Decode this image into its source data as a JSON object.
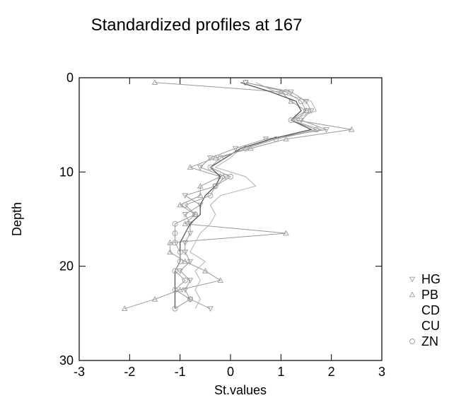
{
  "chart_data": {
    "type": "line",
    "title": "Standardized profiles at 167",
    "xlabel": "St.values",
    "ylabel": "Depth",
    "xlim": [
      -3,
      3
    ],
    "ylim": [
      0,
      30
    ],
    "y_inverted": true,
    "xticks": [
      "-3",
      "-2",
      "-1",
      "0",
      "1",
      "2",
      "3"
    ],
    "yticks": [
      "0",
      "10",
      "20",
      "30"
    ],
    "grid": false,
    "legend_position": "right",
    "series": [
      {
        "name": "HG",
        "color": "#9a9a9a",
        "marker": "triangle-down",
        "points": [
          {
            "x": 0.3,
            "y": 0.5
          },
          {
            "x": 1.2,
            "y": 1.5
          },
          {
            "x": 1.5,
            "y": 2.5
          },
          {
            "x": 1.6,
            "y": 3.5
          },
          {
            "x": 1.4,
            "y": 4.5
          },
          {
            "x": 1.9,
            "y": 5.5
          },
          {
            "x": 0.7,
            "y": 6.5
          },
          {
            "x": 0.1,
            "y": 7.5
          },
          {
            "x": -0.4,
            "y": 8.5
          },
          {
            "x": -0.6,
            "y": 9.5
          },
          {
            "x": -0.1,
            "y": 10.5
          },
          {
            "x": -0.3,
            "y": 11.5
          },
          {
            "x": -0.9,
            "y": 12.5
          },
          {
            "x": -0.6,
            "y": 13.5
          },
          {
            "x": -0.9,
            "y": 14.5
          },
          {
            "x": -0.8,
            "y": 15.5
          },
          {
            "x": -0.8,
            "y": 16.5
          },
          {
            "x": -0.9,
            "y": 17.5
          },
          {
            "x": -0.9,
            "y": 18.5
          },
          {
            "x": -0.8,
            "y": 19.5
          },
          {
            "x": -1.0,
            "y": 20.5
          },
          {
            "x": -0.8,
            "y": 21.5
          },
          {
            "x": -0.9,
            "y": 22.5
          },
          {
            "x": -0.8,
            "y": 23.5
          },
          {
            "x": -0.4,
            "y": 24.5
          }
        ]
      },
      {
        "name": "PB",
        "color": "#9a9a9a",
        "marker": "triangle-up",
        "points": [
          {
            "x": -1.5,
            "y": 0.5
          },
          {
            "x": 1.0,
            "y": 1.5
          },
          {
            "x": 1.2,
            "y": 2.5
          },
          {
            "x": 1.5,
            "y": 3.5
          },
          {
            "x": 1.3,
            "y": 4.5
          },
          {
            "x": 2.4,
            "y": 5.5
          },
          {
            "x": 1.1,
            "y": 6.5
          },
          {
            "x": 0.4,
            "y": 7.5
          },
          {
            "x": -0.3,
            "y": 8.5
          },
          {
            "x": -0.8,
            "y": 9.5
          },
          {
            "x": -0.2,
            "y": 10.5
          },
          {
            "x": -0.6,
            "y": 11.5
          },
          {
            "x": -0.6,
            "y": 12.5
          },
          {
            "x": -1.0,
            "y": 13.5
          },
          {
            "x": -0.7,
            "y": 14.5
          },
          {
            "x": -0.9,
            "y": 15.5
          },
          {
            "x": 1.1,
            "y": 16.5
          },
          {
            "x": -1.2,
            "y": 17.5
          },
          {
            "x": -1.2,
            "y": 18.5
          },
          {
            "x": -0.9,
            "y": 19.5
          },
          {
            "x": -0.5,
            "y": 20.5
          },
          {
            "x": -0.2,
            "y": 21.5
          },
          {
            "x": -1.0,
            "y": 22.5
          },
          {
            "x": -1.5,
            "y": 23.5
          },
          {
            "x": -2.1,
            "y": 24.5
          }
        ]
      },
      {
        "name": "CD",
        "color": "#b0b0b0",
        "marker": "none",
        "points": [
          {
            "x": 0.5,
            "y": 0.5
          },
          {
            "x": 0.9,
            "y": 1.5
          },
          {
            "x": 1.6,
            "y": 2.5
          },
          {
            "x": 1.7,
            "y": 3.5
          },
          {
            "x": 1.2,
            "y": 4.5
          },
          {
            "x": 1.8,
            "y": 5.5
          },
          {
            "x": 0.9,
            "y": 6.5
          },
          {
            "x": 0.2,
            "y": 7.5
          },
          {
            "x": 0.0,
            "y": 8.5
          },
          {
            "x": -0.3,
            "y": 9.5
          },
          {
            "x": 0.3,
            "y": 10.5
          },
          {
            "x": 0.5,
            "y": 11.5
          },
          {
            "x": -0.2,
            "y": 12.5
          },
          {
            "x": -0.4,
            "y": 13.5
          },
          {
            "x": -0.3,
            "y": 14.5
          },
          {
            "x": -0.4,
            "y": 15.5
          },
          {
            "x": -0.6,
            "y": 16.5
          },
          {
            "x": -0.7,
            "y": 17.5
          },
          {
            "x": -0.8,
            "y": 18.5
          },
          {
            "x": -0.5,
            "y": 19.5
          },
          {
            "x": -0.7,
            "y": 20.5
          },
          {
            "x": -0.6,
            "y": 21.5
          },
          {
            "x": -0.7,
            "y": 22.5
          },
          {
            "x": -0.6,
            "y": 23.5
          },
          {
            "x": -0.7,
            "y": 24.5
          }
        ]
      },
      {
        "name": "CU",
        "color": "#555555",
        "marker": "none",
        "points": [
          {
            "x": 0.2,
            "y": 0.5
          },
          {
            "x": 0.8,
            "y": 1.5
          },
          {
            "x": 1.3,
            "y": 2.5
          },
          {
            "x": 1.4,
            "y": 3.5
          },
          {
            "x": 1.2,
            "y": 4.5
          },
          {
            "x": 1.6,
            "y": 5.5
          },
          {
            "x": 0.8,
            "y": 6.5
          },
          {
            "x": 0.2,
            "y": 7.5
          },
          {
            "x": -0.1,
            "y": 8.5
          },
          {
            "x": -0.4,
            "y": 9.5
          },
          {
            "x": -0.2,
            "y": 10.5
          },
          {
            "x": -0.3,
            "y": 11.5
          },
          {
            "x": -0.5,
            "y": 12.5
          },
          {
            "x": -0.6,
            "y": 13.5
          },
          {
            "x": -0.6,
            "y": 14.5
          },
          {
            "x": -0.8,
            "y": 15.5
          },
          {
            "x": -0.9,
            "y": 16.5
          },
          {
            "x": -1.0,
            "y": 17.5
          },
          {
            "x": -1.0,
            "y": 18.5
          },
          {
            "x": -1.0,
            "y": 19.5
          },
          {
            "x": -1.1,
            "y": 20.5
          },
          {
            "x": -1.1,
            "y": 21.5
          },
          {
            "x": -1.1,
            "y": 22.5
          },
          {
            "x": -1.1,
            "y": 23.5
          },
          {
            "x": -1.1,
            "y": 24.5
          }
        ]
      },
      {
        "name": "ZN",
        "color": "#9a9a9a",
        "marker": "circle",
        "points": [
          {
            "x": 0.3,
            "y": 0.5
          },
          {
            "x": 1.1,
            "y": 1.5
          },
          {
            "x": 1.4,
            "y": 2.5
          },
          {
            "x": 1.5,
            "y": 3.5
          },
          {
            "x": 1.2,
            "y": 4.5
          },
          {
            "x": 1.7,
            "y": 5.5
          },
          {
            "x": 0.9,
            "y": 6.5
          },
          {
            "x": 0.3,
            "y": 7.5
          },
          {
            "x": -0.2,
            "y": 8.5
          },
          {
            "x": -0.4,
            "y": 9.5
          },
          {
            "x": 0.0,
            "y": 10.5
          },
          {
            "x": -0.3,
            "y": 11.5
          },
          {
            "x": -0.4,
            "y": 12.5
          },
          {
            "x": -0.9,
            "y": 13.5
          },
          {
            "x": -0.7,
            "y": 14.5
          },
          {
            "x": -1.1,
            "y": 15.5
          },
          {
            "x": -1.1,
            "y": 16.5
          },
          {
            "x": -1.1,
            "y": 17.5
          },
          {
            "x": -1.0,
            "y": 18.5
          },
          {
            "x": -1.0,
            "y": 19.5
          },
          {
            "x": -1.1,
            "y": 20.5
          },
          {
            "x": -0.9,
            "y": 21.5
          },
          {
            "x": -1.1,
            "y": 22.5
          },
          {
            "x": -0.8,
            "y": 23.5
          },
          {
            "x": -1.1,
            "y": 24.5
          }
        ]
      }
    ]
  }
}
